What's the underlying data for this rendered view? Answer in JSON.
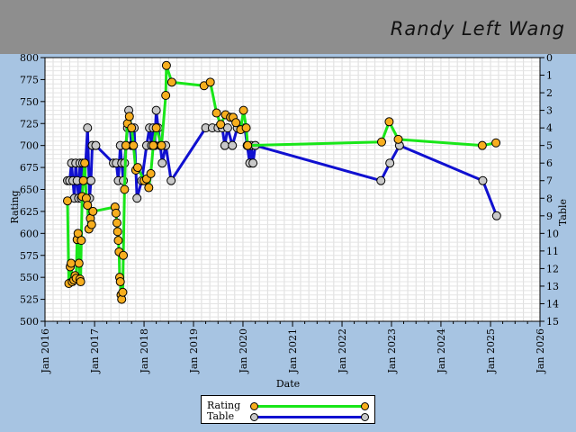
{
  "header": {
    "player_name": "Randy Left Wang"
  },
  "colors": {
    "rating_line": "#19e619",
    "rating_marker": "#f7ae1e",
    "table_line": "#1010d0",
    "table_marker": "#c8c8c8"
  },
  "legend": {
    "rating": "Rating",
    "table": "Table"
  },
  "chart_data": {
    "type": "line",
    "xlabel": "Date",
    "ylabel": "Rating",
    "y2label": "Table",
    "xlim": [
      "2016-01-01",
      "2026-01-01"
    ],
    "ylim": [
      500,
      800
    ],
    "y2lim": [
      0,
      15
    ],
    "y2_inverted": true,
    "grid": true,
    "legend_position": "bottom-center",
    "x_ticks": [
      "Jan 2016",
      "Jan 2017",
      "Jan 2018",
      "Jan 2019",
      "Jan 2020",
      "Jan 2021",
      "Jan 2022",
      "Jan 2023",
      "Jan 2024",
      "Jan 2025",
      "Jan 2026"
    ],
    "y_ticks": [
      500,
      525,
      550,
      575,
      600,
      625,
      650,
      675,
      700,
      725,
      750,
      775,
      800
    ],
    "y2_ticks": [
      0,
      1,
      2,
      3,
      4,
      5,
      6,
      7,
      8,
      9,
      10,
      11,
      12,
      13,
      14,
      15
    ],
    "series": [
      {
        "name": "Rating",
        "axis": "left",
        "points": [
          [
            "2016-06-15",
            637
          ],
          [
            "2016-06-25",
            543
          ],
          [
            "2016-07-05",
            562
          ],
          [
            "2016-07-12",
            566
          ],
          [
            "2016-07-20",
            545
          ],
          [
            "2016-08-01",
            547
          ],
          [
            "2016-08-10",
            552
          ],
          [
            "2016-08-18",
            549
          ],
          [
            "2016-08-25",
            593
          ],
          [
            "2016-09-01",
            600
          ],
          [
            "2016-09-08",
            566
          ],
          [
            "2016-09-15",
            548
          ],
          [
            "2016-09-20",
            545
          ],
          [
            "2016-09-25",
            592
          ],
          [
            "2016-10-01",
            642
          ],
          [
            "2016-10-10",
            660
          ],
          [
            "2016-10-20",
            680
          ],
          [
            "2016-11-01",
            640
          ],
          [
            "2016-11-10",
            632
          ],
          [
            "2016-11-20",
            605
          ],
          [
            "2016-12-01",
            617
          ],
          [
            "2016-12-10",
            610
          ],
          [
            "2016-12-20",
            625
          ],
          [
            "2017-06-01",
            630
          ],
          [
            "2017-06-08",
            623
          ],
          [
            "2017-06-15",
            612
          ],
          [
            "2017-06-20",
            602
          ],
          [
            "2017-06-25",
            592
          ],
          [
            "2017-07-01",
            579
          ],
          [
            "2017-07-05",
            550
          ],
          [
            "2017-07-10",
            545
          ],
          [
            "2017-07-15",
            530
          ],
          [
            "2017-07-20",
            525
          ],
          [
            "2017-07-28",
            533
          ],
          [
            "2017-08-01",
            575
          ],
          [
            "2017-08-10",
            650
          ],
          [
            "2017-08-20",
            700
          ],
          [
            "2017-09-01",
            725
          ],
          [
            "2017-09-15",
            733
          ],
          [
            "2017-10-01",
            720
          ],
          [
            "2017-10-15",
            700
          ],
          [
            "2017-11-01",
            672
          ],
          [
            "2017-11-15",
            675
          ],
          [
            "2018-01-01",
            660
          ],
          [
            "2018-01-20",
            662
          ],
          [
            "2018-02-05",
            652
          ],
          [
            "2018-02-20",
            668
          ],
          [
            "2018-03-10",
            700
          ],
          [
            "2018-04-01",
            720
          ],
          [
            "2018-05-10",
            700
          ],
          [
            "2018-06-10",
            757
          ],
          [
            "2018-06-15",
            791
          ],
          [
            "2018-07-25",
            772
          ],
          [
            "2019-03-20",
            768
          ],
          [
            "2019-05-05",
            772
          ],
          [
            "2019-06-20",
            737
          ],
          [
            "2019-07-20",
            724
          ],
          [
            "2019-08-25",
            735
          ],
          [
            "2019-10-01",
            732
          ],
          [
            "2019-10-20",
            732
          ],
          [
            "2019-11-10",
            726
          ],
          [
            "2019-12-15",
            718
          ],
          [
            "2020-01-05",
            740
          ],
          [
            "2020-01-25",
            720
          ],
          [
            "2020-02-05",
            700
          ],
          [
            "2022-10-20",
            704
          ],
          [
            "2022-12-15",
            727
          ],
          [
            "2023-02-20",
            707
          ],
          [
            "2024-11-01",
            700
          ],
          [
            "2025-02-10",
            703
          ]
        ]
      },
      {
        "name": "Table",
        "axis": "right",
        "points": [
          [
            "2016-06-15",
            7
          ],
          [
            "2016-07-01",
            7
          ],
          [
            "2016-07-15",
            6
          ],
          [
            "2016-07-25",
            7
          ],
          [
            "2016-08-05",
            8
          ],
          [
            "2016-08-15",
            6
          ],
          [
            "2016-08-25",
            7
          ],
          [
            "2016-09-05",
            8
          ],
          [
            "2016-09-15",
            6
          ],
          [
            "2016-09-25",
            8
          ],
          [
            "2016-10-05",
            6
          ],
          [
            "2016-10-20",
            7
          ],
          [
            "2016-11-10",
            4
          ],
          [
            "2016-11-25",
            8
          ],
          [
            "2016-12-05",
            7
          ],
          [
            "2016-12-15",
            5
          ],
          [
            "2017-01-10",
            5
          ],
          [
            "2017-05-20",
            6
          ],
          [
            "2017-06-10",
            6
          ],
          [
            "2017-06-25",
            7
          ],
          [
            "2017-07-10",
            5
          ],
          [
            "2017-07-20",
            6
          ],
          [
            "2017-08-01",
            7
          ],
          [
            "2017-08-10",
            6
          ],
          [
            "2017-08-20",
            5
          ],
          [
            "2017-09-01",
            4
          ],
          [
            "2017-09-10",
            3
          ],
          [
            "2017-09-20",
            4
          ],
          [
            "2017-10-01",
            5
          ],
          [
            "2017-10-10",
            5
          ],
          [
            "2017-10-20",
            4
          ],
          [
            "2017-11-10",
            8
          ],
          [
            "2017-12-15",
            7
          ],
          [
            "2018-01-20",
            5
          ],
          [
            "2018-02-10",
            4
          ],
          [
            "2018-02-25",
            5
          ],
          [
            "2018-03-10",
            4
          ],
          [
            "2018-03-20",
            5
          ],
          [
            "2018-04-01",
            3
          ],
          [
            "2018-04-15",
            4
          ],
          [
            "2018-05-01",
            5
          ],
          [
            "2018-05-15",
            6
          ],
          [
            "2018-06-10",
            5
          ],
          [
            "2018-07-20",
            7
          ],
          [
            "2019-04-01",
            4
          ],
          [
            "2019-05-20",
            4
          ],
          [
            "2019-07-01",
            4
          ],
          [
            "2019-08-01",
            4
          ],
          [
            "2019-08-20",
            5
          ],
          [
            "2019-09-10",
            4
          ],
          [
            "2019-10-15",
            5
          ],
          [
            "2019-11-20",
            4
          ],
          [
            "2020-01-15",
            4
          ],
          [
            "2020-02-01",
            5
          ],
          [
            "2020-02-20",
            6
          ],
          [
            "2020-03-01",
            5
          ],
          [
            "2020-03-15",
            6
          ],
          [
            "2020-04-01",
            5
          ],
          [
            "2022-10-15",
            7
          ],
          [
            "2022-12-20",
            6
          ],
          [
            "2023-03-01",
            5
          ],
          [
            "2024-11-05",
            7
          ],
          [
            "2025-02-15",
            9
          ]
        ]
      }
    ]
  }
}
